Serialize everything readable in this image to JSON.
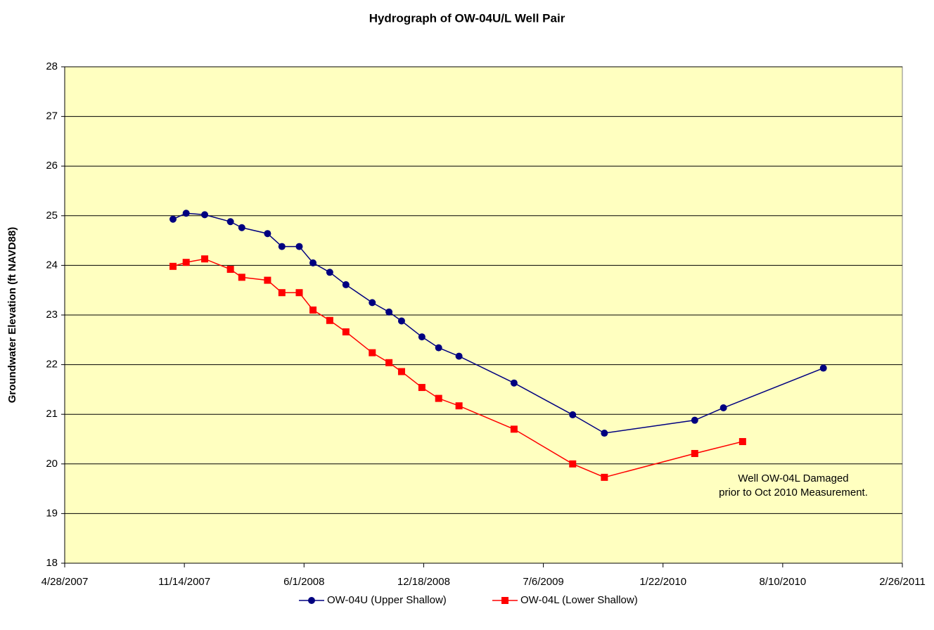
{
  "chart_data": {
    "type": "line",
    "title": "Hydrograph of OW-04U/L Well Pair",
    "y_label": "Groundwater Elevation (ft NAVD88)",
    "annotation": [
      "Well OW-04L Damaged",
      "prior to Oct 2010 Measurement."
    ],
    "xlim": [
      "4/28/2007",
      "2/26/2011"
    ],
    "xticks": [
      "4/28/2007",
      "11/14/2007",
      "6/1/2008",
      "12/18/2008",
      "7/6/2009",
      "1/22/2010",
      "8/10/2010",
      "2/26/2011"
    ],
    "ylim": [
      18,
      28
    ],
    "yticks": [
      18,
      19,
      20,
      21,
      22,
      23,
      24,
      25,
      26,
      27,
      28
    ],
    "grid": true,
    "legend": "bottom",
    "series": [
      {
        "name": "OW-04U (Upper Shallow)",
        "color": "#000080",
        "marker": "circle",
        "x": [
          "10/26/2007",
          "11/17/2007",
          "12/18/2007",
          "1/30/2008",
          "2/18/2008",
          "4/1/2008",
          "4/25/2008",
          "5/24/2008",
          "6/16/2008",
          "7/14/2008",
          "8/10/2008",
          "9/23/2008",
          "10/21/2008",
          "11/11/2008",
          "12/15/2008",
          "1/12/2009",
          "2/15/2009",
          "5/18/2009",
          "8/24/2009",
          "10/16/2009",
          "3/16/2010",
          "5/3/2010",
          "10/17/2010"
        ],
        "values": [
          24.93,
          25.05,
          25.02,
          24.88,
          24.76,
          24.64,
          24.38,
          24.38,
          24.05,
          23.86,
          23.61,
          23.25,
          23.06,
          22.88,
          22.56,
          22.34,
          22.17,
          21.63,
          20.99,
          20.62,
          20.88,
          21.13,
          21.93
        ]
      },
      {
        "name": "OW-04L (Lower Shallow)",
        "color": "#ff0000",
        "marker": "square",
        "x": [
          "10/26/2007",
          "11/17/2007",
          "12/18/2007",
          "1/30/2008",
          "2/18/2008",
          "4/1/2008",
          "4/25/2008",
          "5/24/2008",
          "6/16/2008",
          "7/14/2008",
          "8/10/2008",
          "9/23/2008",
          "10/21/2008",
          "11/11/2008",
          "12/15/2008",
          "1/12/2009",
          "2/15/2009",
          "5/18/2009",
          "8/24/2009",
          "10/16/2009",
          "3/16/2010",
          "6/4/2010"
        ],
        "values": [
          23.98,
          24.06,
          24.13,
          23.92,
          23.76,
          23.7,
          23.45,
          23.45,
          23.1,
          22.89,
          22.66,
          22.24,
          22.04,
          21.86,
          21.54,
          21.32,
          21.17,
          20.7,
          20.0,
          19.73,
          20.21,
          20.45
        ]
      }
    ]
  }
}
